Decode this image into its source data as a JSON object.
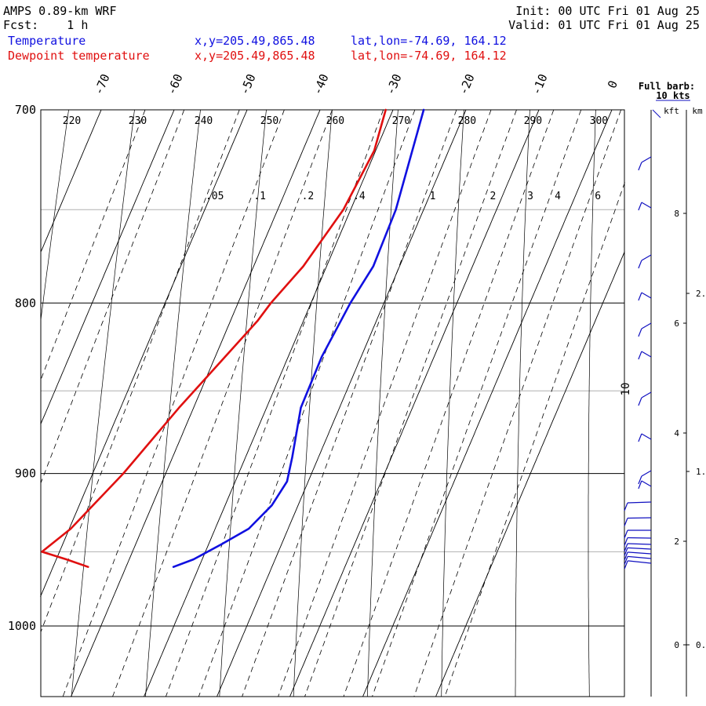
{
  "header": {
    "model": "AMPS 0.89-km WRF",
    "fcst": "Fcst:    1 h",
    "init": "Init: 00 UTC Fri 01 Aug 25",
    "valid": "Valid: 01 UTC Fri 01 Aug 25",
    "temp_label": "Temperature",
    "dew_label": "Dewpoint temperature",
    "temp_xy": "x,y=205.49,865.48",
    "dew_xy": "x,y=205.49,865.48",
    "temp_latlon": "lat,lon=-74.69, 164.12",
    "dew_latlon": "lat,lon=-74.69, 164.12"
  },
  "wind_panel": {
    "title_line1": "Full barb:",
    "title_line2": "10 kts",
    "kft_label": "kft",
    "km_label": "km",
    "kft_ticks": [
      "8",
      "6",
      "4",
      "2",
      "0"
    ],
    "km_ticks": [
      "2.",
      "1.",
      "0."
    ],
    "mid_label": "10"
  },
  "colors": {
    "temperature": "#1010e0",
    "dewpoint": "#e01010",
    "isobar": "#000000",
    "minor_isobar": "#b0b0b0",
    "wind_barb": "#1010c0"
  },
  "chart_data": {
    "type": "line",
    "subtype": "skew-T log-p",
    "pressure_range_hpa": [
      700,
      1040
    ],
    "pressure_labels": [
      "700",
      "800",
      "900",
      "1000"
    ],
    "isotherm_labels": [
      "-70",
      "-60",
      "-50",
      "-40",
      "-30",
      "-20",
      "-10",
      "0"
    ],
    "potential_temperature_labels": [
      "220",
      "230",
      "240",
      "250",
      "260",
      "270",
      "280",
      "290",
      "300"
    ],
    "mixing_ratio_labels": [
      ".05",
      ".1",
      ".2",
      ".4",
      "1",
      "2",
      "3",
      "4",
      "6"
    ],
    "series": [
      {
        "name": "Temperature",
        "pressure_hpa": [
          700,
          750,
          780,
          800,
          830,
          860,
          890,
          905,
          920,
          935,
          945,
          955,
          960
        ],
        "temp_c": [
          -25.8,
          -23.8,
          -23.6,
          -24.6,
          -25.4,
          -25.3,
          -23.6,
          -22.9,
          -23.6,
          -25.4,
          -28.2,
          -31.2,
          -33.5
        ]
      },
      {
        "name": "Dewpoint temperature",
        "pressure_hpa": [
          700,
          720,
          750,
          780,
          800,
          810,
          860,
          900,
          935,
          950,
          955,
          960
        ],
        "temp_c": [
          -31.0,
          -30.2,
          -31.0,
          -33.2,
          -35.5,
          -36.3,
          -42.0,
          -45.8,
          -49.8,
          -52.4,
          -48.6,
          -45.2
        ]
      }
    ]
  }
}
